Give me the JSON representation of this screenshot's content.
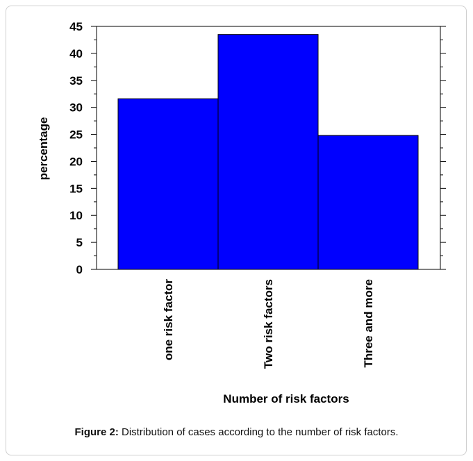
{
  "caption": {
    "label": "Figure 2:",
    "text": "Distribution of cases according to the number of risk factors."
  },
  "chart_data": {
    "type": "bar",
    "title": "",
    "xlabel": "Number of risk factors",
    "ylabel": "percentage",
    "categories": [
      "one risk factor",
      "Two risk factors",
      "Three and more"
    ],
    "values": [
      31.6,
      43.5,
      24.8
    ],
    "ylim": [
      0,
      45
    ],
    "yticks": [
      0,
      5,
      10,
      15,
      20,
      25,
      30,
      35,
      40,
      45
    ],
    "grid": false,
    "bar_color": "#0000ff",
    "bar_outline": "#000000"
  }
}
